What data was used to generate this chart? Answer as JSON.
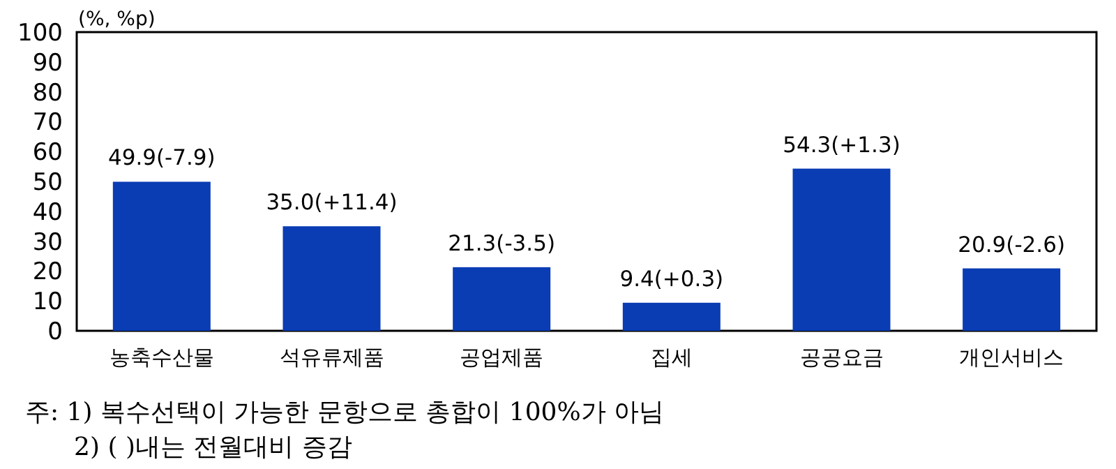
{
  "chart_data": {
    "type": "bar",
    "ylabel": "(%, %p)",
    "categories": [
      "농축수산물",
      "석유류제품",
      "공업제품",
      "집세",
      "공공요금",
      "개인서비스"
    ],
    "values": [
      49.9,
      35.0,
      21.3,
      9.4,
      54.3,
      20.9
    ],
    "value_labels": [
      "49.9(-7.9)",
      "35.0(+11.4)",
      "21.3(-3.5)",
      "9.4(+0.3)",
      "54.3(+1.3)",
      "20.9(-2.6)"
    ],
    "color": "#0a3cb4",
    "ylim": [
      0,
      100
    ],
    "yticks": [
      0,
      10,
      20,
      30,
      40,
      50,
      60,
      70,
      80,
      90,
      100
    ],
    "grid": false,
    "annotations": [
      "주: 1) 복수선택이 가능한 문항으로 총합이 100%가 아님",
      "2) ( )내는 전월대비 증감"
    ]
  }
}
